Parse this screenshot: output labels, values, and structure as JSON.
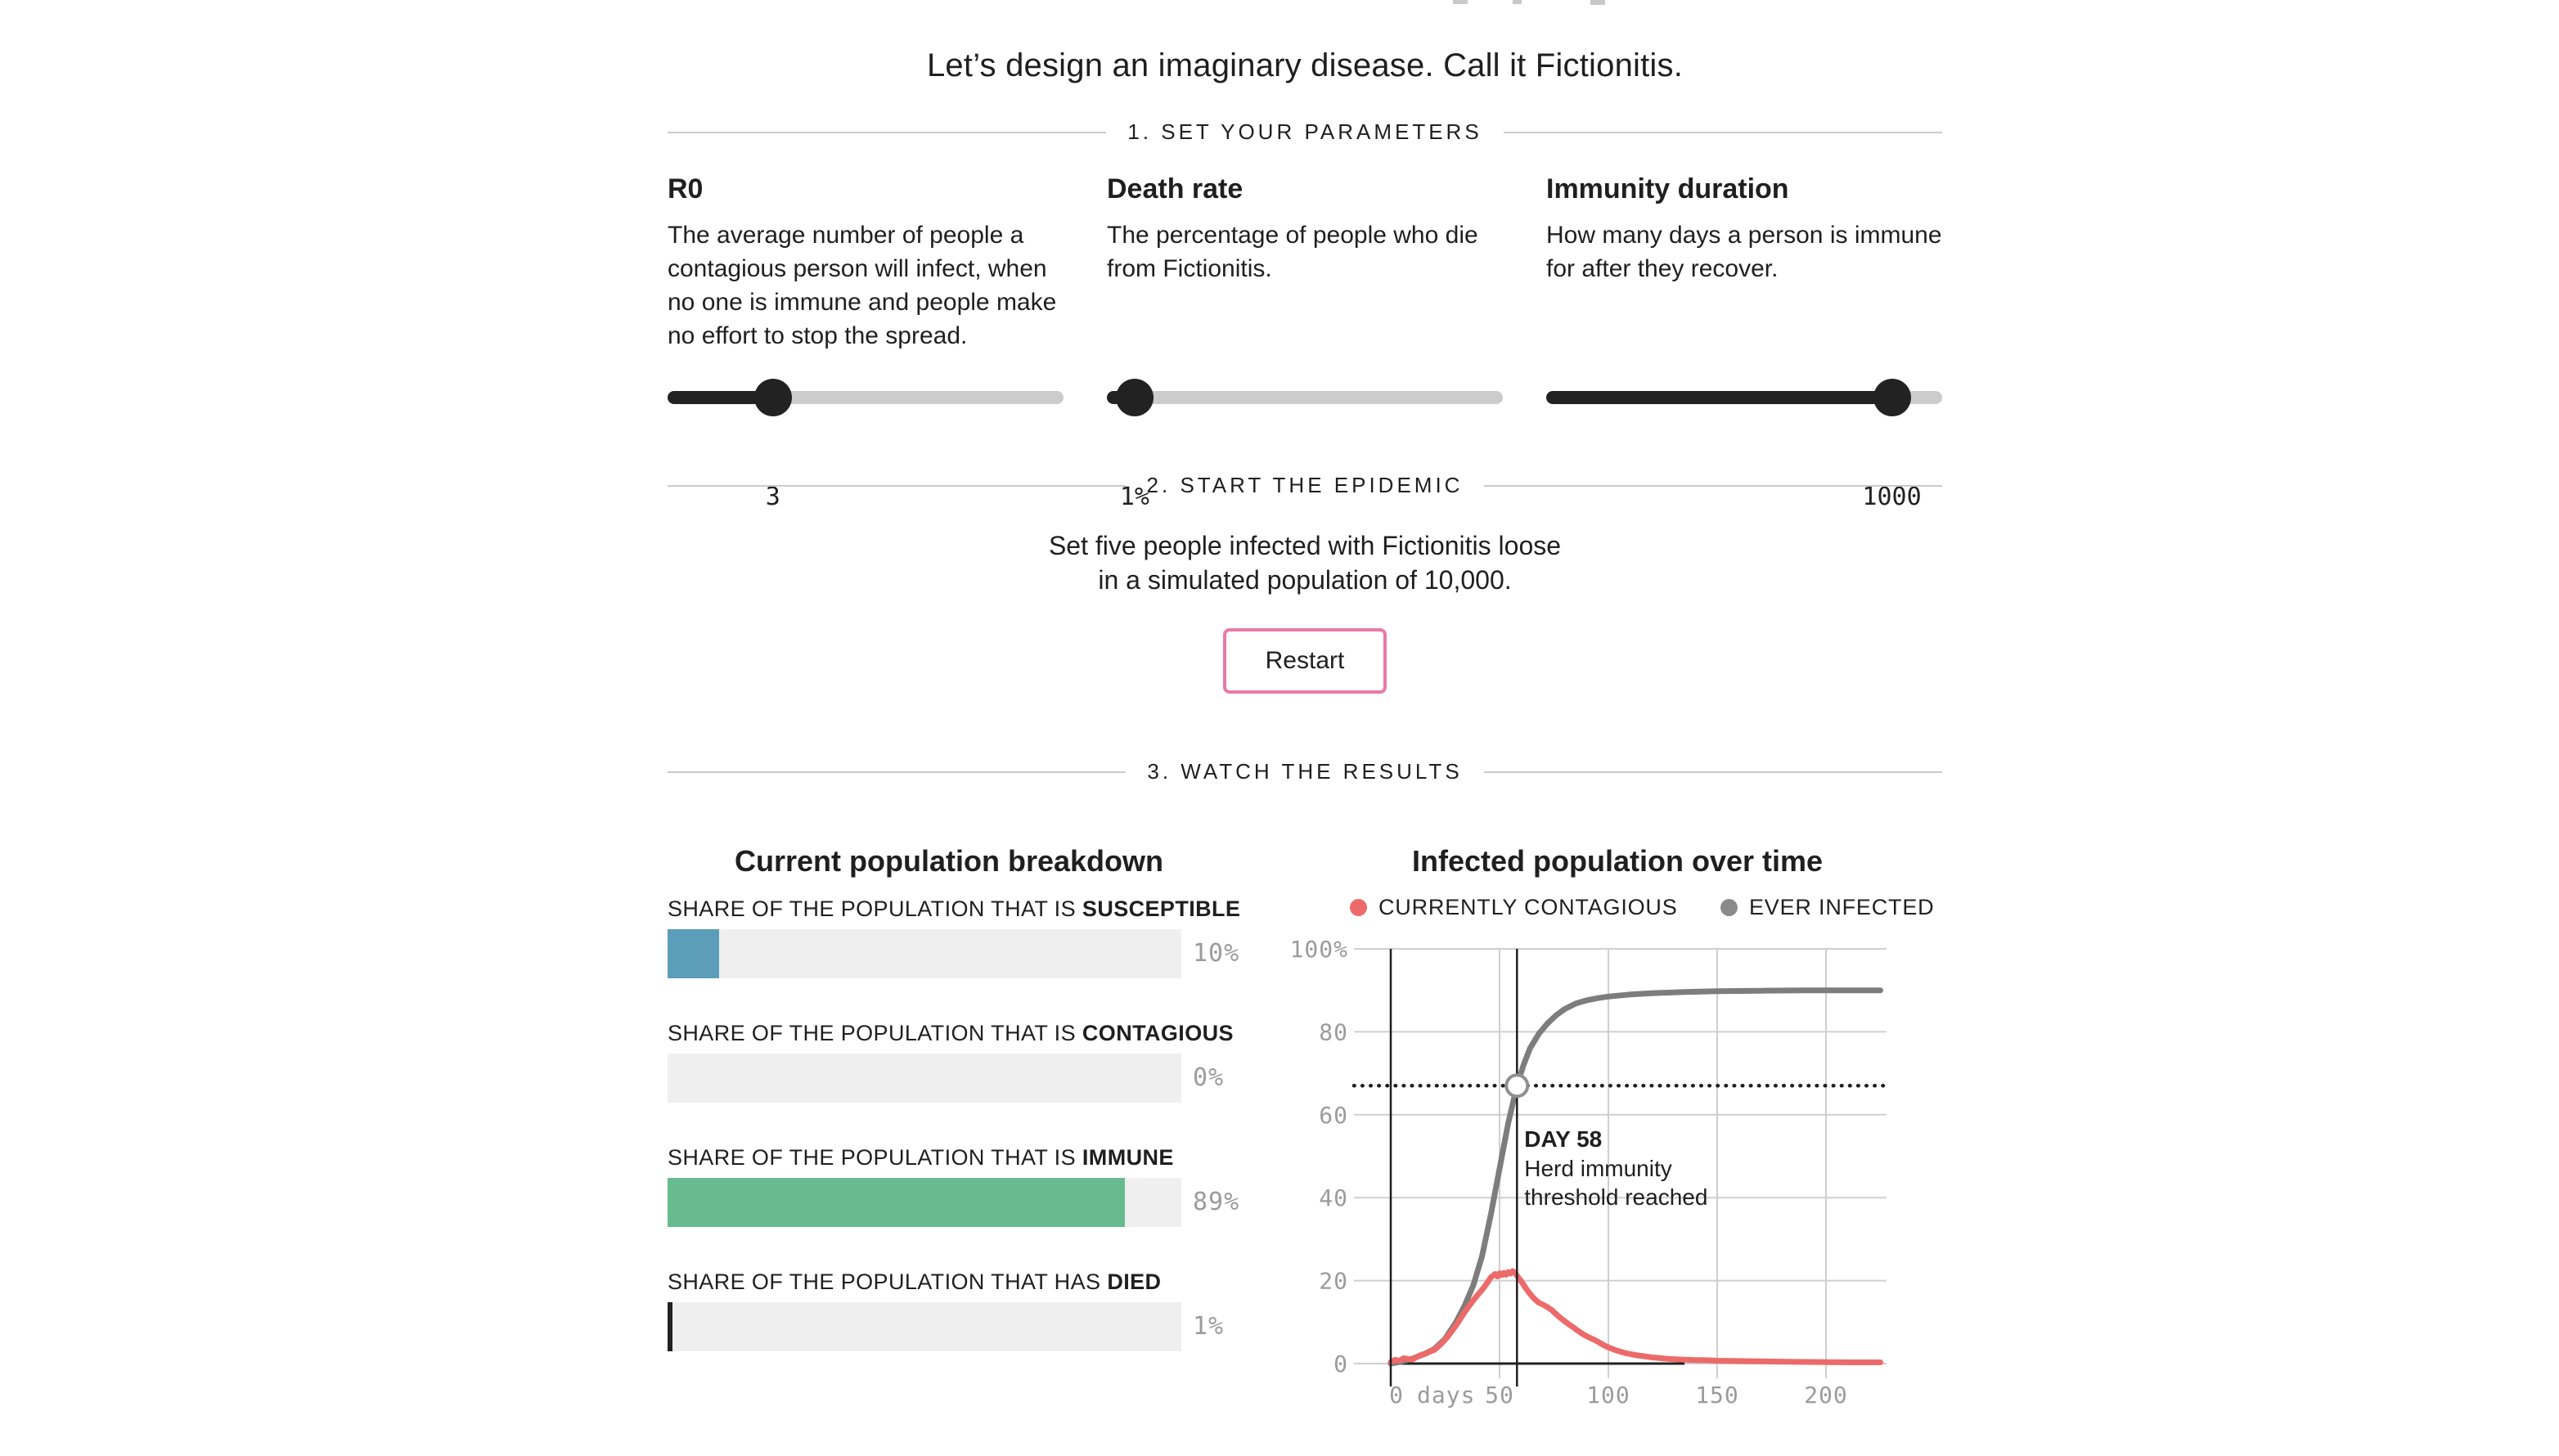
{
  "page_title": "Let’s design an imaginary disease. Call it Fictionitis.",
  "colors": {
    "accent_pink": "#ea7aa5",
    "susceptible_blue": "#5c9db9",
    "immune_green": "#67bb8e",
    "died_black": "#222222",
    "contagious_red": "#ed6a6a",
    "ever_infected_gray": "#7d7d7d",
    "axis_gray": "#9b9b9b",
    "gridline_gray": "#cfcfcf",
    "slider_dark": "#222222",
    "slider_track": "#cccccc"
  },
  "sections": [
    {
      "heading": "1. SET YOUR PARAMETERS"
    },
    {
      "heading": "2. START THE EPIDEMIC"
    },
    {
      "heading": "3. WATCH THE RESULTS"
    }
  ],
  "parameters": [
    {
      "name": "R0",
      "description": "The average number of people a contagious person will infect, when no one is immune and people make no effort to stop the spread.",
      "value": "3",
      "fill_percent": 26.6
    },
    {
      "name": "Death rate",
      "description": "The percentage of people who die from Fictionitis.",
      "value": "1%",
      "fill_percent": 7
    },
    {
      "name": "Immunity duration",
      "description": "How many days a person is immune for after they recover.",
      "value": "1000",
      "fill_percent": 87.3
    }
  ],
  "start": {
    "description_line1": "Set five people infected with Fictionitis loose",
    "description_line2": "in a simulated population of 10,000.",
    "button_label": "Restart"
  },
  "breakdown": {
    "title": "Current population breakdown",
    "bars": [
      {
        "label_prefix": "SHARE OF THE POPULATION THAT IS ",
        "label_bold": "SUSCEPTIBLE",
        "value_label": "10%",
        "percent": 10,
        "fill_color": "#5c9db9"
      },
      {
        "label_prefix": "SHARE OF THE POPULATION THAT IS ",
        "label_bold": "CONTAGIOUS",
        "value_label": "0%",
        "percent": 0,
        "fill_color": "#ed6a6a"
      },
      {
        "label_prefix": "SHARE OF THE POPULATION THAT IS ",
        "label_bold": "IMMUNE",
        "value_label": "89%",
        "percent": 89,
        "fill_color": "#67bb8e"
      },
      {
        "label_prefix": "SHARE OF THE POPULATION THAT HAS ",
        "label_bold": "DIED",
        "value_label": "1%",
        "percent": 1,
        "fill_color": "#222222"
      }
    ]
  },
  "chart_data": {
    "type": "line",
    "title": "Infected population over time",
    "x_unit_label": "days",
    "x_ticks": [
      0,
      50,
      100,
      150,
      200
    ],
    "x_tick_labels": [
      "0",
      "50",
      "100",
      "150",
      "200"
    ],
    "y_ticks": [
      0,
      20,
      40,
      60,
      80,
      100
    ],
    "y_tick_labels": [
      "0",
      "20",
      "40",
      "60",
      "80",
      "100%"
    ],
    "x_range": [
      0,
      225
    ],
    "y_range": [
      0,
      100
    ],
    "grid": true,
    "legend_position": "top",
    "legend": [
      {
        "label": "CURRENTLY CONTAGIOUS",
        "color": "#ed6a6a"
      },
      {
        "label": "EVER INFECTED",
        "color": "#8a8a8a"
      }
    ],
    "annotation": {
      "day": 58,
      "percent": 67,
      "title": "DAY 58",
      "line1": "Herd immunity",
      "line2": "threshold reached"
    },
    "axis_baseline": {
      "y": 0,
      "from_day": 0,
      "to_day": 135
    },
    "series": [
      {
        "name": "EVER INFECTED",
        "color": "#7d7d7d",
        "points": [
          [
            0,
            0
          ],
          [
            5,
            0.5
          ],
          [
            10,
            1.2
          ],
          [
            15,
            2.2
          ],
          [
            20,
            3.5
          ],
          [
            25,
            6
          ],
          [
            30,
            10
          ],
          [
            34,
            14
          ],
          [
            38,
            19
          ],
          [
            42,
            26
          ],
          [
            46,
            36
          ],
          [
            50,
            47
          ],
          [
            54,
            58
          ],
          [
            58,
            67
          ],
          [
            61,
            72
          ],
          [
            64,
            76
          ],
          [
            68,
            79.5
          ],
          [
            72,
            82
          ],
          [
            76,
            84
          ],
          [
            80,
            85.5
          ],
          [
            85,
            86.8
          ],
          [
            90,
            87.6
          ],
          [
            95,
            88.1
          ],
          [
            100,
            88.5
          ],
          [
            110,
            89
          ],
          [
            120,
            89.3
          ],
          [
            135,
            89.6
          ],
          [
            150,
            89.8
          ],
          [
            170,
            89.9
          ],
          [
            190,
            90
          ],
          [
            210,
            90
          ],
          [
            225,
            90
          ]
        ]
      },
      {
        "name": "CURRENTLY CONTAGIOUS",
        "color": "#ed6a6a",
        "points": [
          [
            0,
            0.4
          ],
          [
            2,
            0.9
          ],
          [
            4,
            0.7
          ],
          [
            6,
            1.3
          ],
          [
            8,
            1.1
          ],
          [
            10,
            1.0
          ],
          [
            12,
            1.6
          ],
          [
            14,
            2.1
          ],
          [
            16,
            2.4
          ],
          [
            18,
            2.9
          ],
          [
            20,
            3.3
          ],
          [
            22,
            4.2
          ],
          [
            24,
            5.2
          ],
          [
            26,
            6.4
          ],
          [
            28,
            7.8
          ],
          [
            30,
            9.2
          ],
          [
            32,
            10.8
          ],
          [
            34,
            12.4
          ],
          [
            36,
            13.9
          ],
          [
            38,
            15.3
          ],
          [
            40,
            16.6
          ],
          [
            42,
            17.8
          ],
          [
            44,
            19.2
          ],
          [
            46,
            20.8
          ],
          [
            48,
            21.6
          ],
          [
            49,
            21.0
          ],
          [
            50,
            21.8
          ],
          [
            51,
            21.3
          ],
          [
            52,
            21.9
          ],
          [
            53,
            21.4
          ],
          [
            54,
            22.1
          ],
          [
            55,
            21.7
          ],
          [
            56,
            22.3
          ],
          [
            57,
            21.9
          ],
          [
            58,
            21.2
          ],
          [
            60,
            19.8
          ],
          [
            62,
            18.2
          ],
          [
            64,
            16.8
          ],
          [
            66,
            15.6
          ],
          [
            68,
            14.7
          ],
          [
            70,
            14.2
          ],
          [
            72,
            13.6
          ],
          [
            74,
            12.9
          ],
          [
            76,
            11.9
          ],
          [
            78,
            11.0
          ],
          [
            80,
            10.2
          ],
          [
            82,
            9.4
          ],
          [
            84,
            8.7
          ],
          [
            86,
            7.9
          ],
          [
            88,
            7.2
          ],
          [
            90,
            6.6
          ],
          [
            92,
            6.1
          ],
          [
            94,
            5.6
          ],
          [
            96,
            5.0
          ],
          [
            98,
            4.4
          ],
          [
            100,
            3.9
          ],
          [
            102,
            3.5
          ],
          [
            104,
            3.1
          ],
          [
            106,
            2.8
          ],
          [
            108,
            2.5
          ],
          [
            110,
            2.3
          ],
          [
            113,
            2.0
          ],
          [
            116,
            1.8
          ],
          [
            120,
            1.5
          ],
          [
            124,
            1.3
          ],
          [
            128,
            1.1
          ],
          [
            132,
            1.0
          ],
          [
            136,
            0.9
          ],
          [
            140,
            0.85
          ],
          [
            145,
            0.8
          ],
          [
            150,
            0.7
          ],
          [
            156,
            0.65
          ],
          [
            162,
            0.6
          ],
          [
            168,
            0.55
          ],
          [
            175,
            0.5
          ],
          [
            182,
            0.45
          ],
          [
            190,
            0.4
          ],
          [
            200,
            0.35
          ],
          [
            210,
            0.3
          ],
          [
            225,
            0.3
          ]
        ]
      }
    ]
  }
}
